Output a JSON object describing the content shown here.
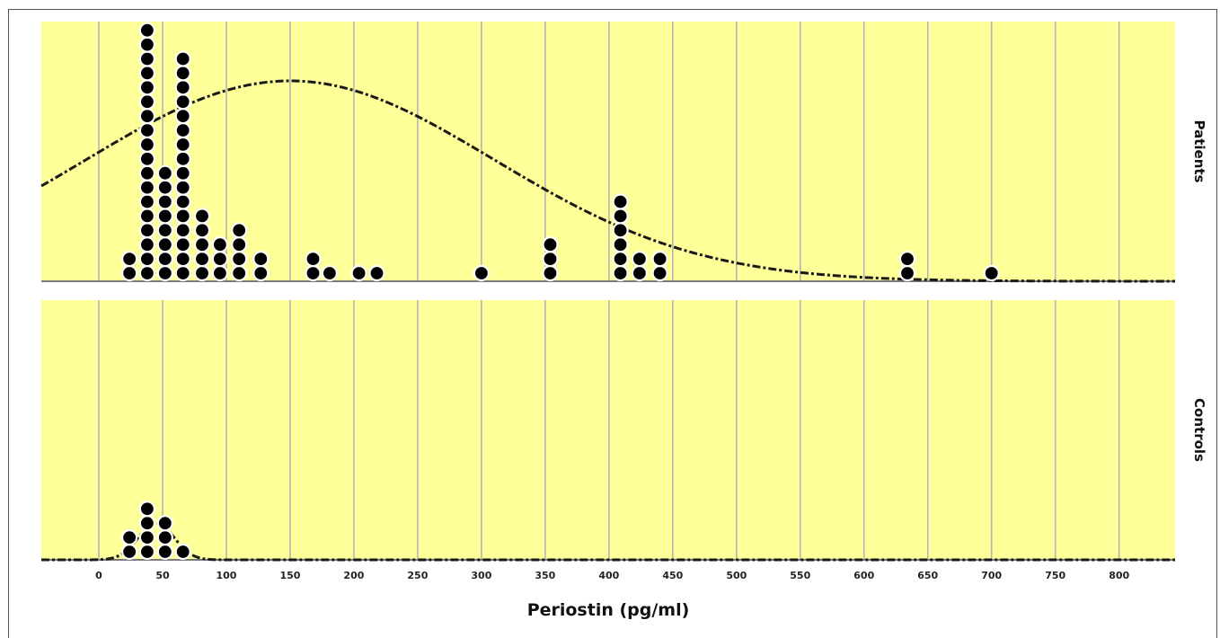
{
  "colors": {
    "panel_background": "#FFFF99",
    "grid": "#B5B5B5",
    "dot_fill": "#000000",
    "dot_outline": "#FFFFFF",
    "curve": "#1a1a1a"
  },
  "chart_data": {
    "type": "scatter",
    "subtype": "faceted dot plot with fitted normal curves",
    "xlabel": "Periostin (pg/ml)",
    "xlim": [
      -45,
      845
    ],
    "xticks": [
      0,
      50,
      100,
      150,
      200,
      250,
      300,
      350,
      400,
      450,
      500,
      550,
      600,
      650,
      700,
      750,
      800
    ],
    "grid": true,
    "facets": [
      {
        "label": "Patients",
        "curve": {
          "type": "normal",
          "mean": 150,
          "sd": 160
        },
        "dot_stacks": [
          {
            "x": 24,
            "count": 2
          },
          {
            "x": 38,
            "count": 18
          },
          {
            "x": 52,
            "count": 8
          },
          {
            "x": 66,
            "count": 16
          },
          {
            "x": 81,
            "count": 5
          },
          {
            "x": 95,
            "count": 3
          },
          {
            "x": 110,
            "count": 4
          },
          {
            "x": 127,
            "count": 2
          },
          {
            "x": 168,
            "count": 2
          },
          {
            "x": 181,
            "count": 1
          },
          {
            "x": 204,
            "count": 1
          },
          {
            "x": 218,
            "count": 1
          },
          {
            "x": 300,
            "count": 1
          },
          {
            "x": 354,
            "count": 3
          },
          {
            "x": 409,
            "count": 6
          },
          {
            "x": 424,
            "count": 2
          },
          {
            "x": 440,
            "count": 2
          },
          {
            "x": 634,
            "count": 2
          },
          {
            "x": 700,
            "count": 1
          }
        ]
      },
      {
        "label": "Controls",
        "curve": {
          "type": "normal",
          "mean": 45,
          "sd": 14
        },
        "dot_stacks": [
          {
            "x": 24,
            "count": 2
          },
          {
            "x": 38,
            "count": 4
          },
          {
            "x": 52,
            "count": 3
          },
          {
            "x": 66,
            "count": 1
          }
        ]
      }
    ]
  }
}
